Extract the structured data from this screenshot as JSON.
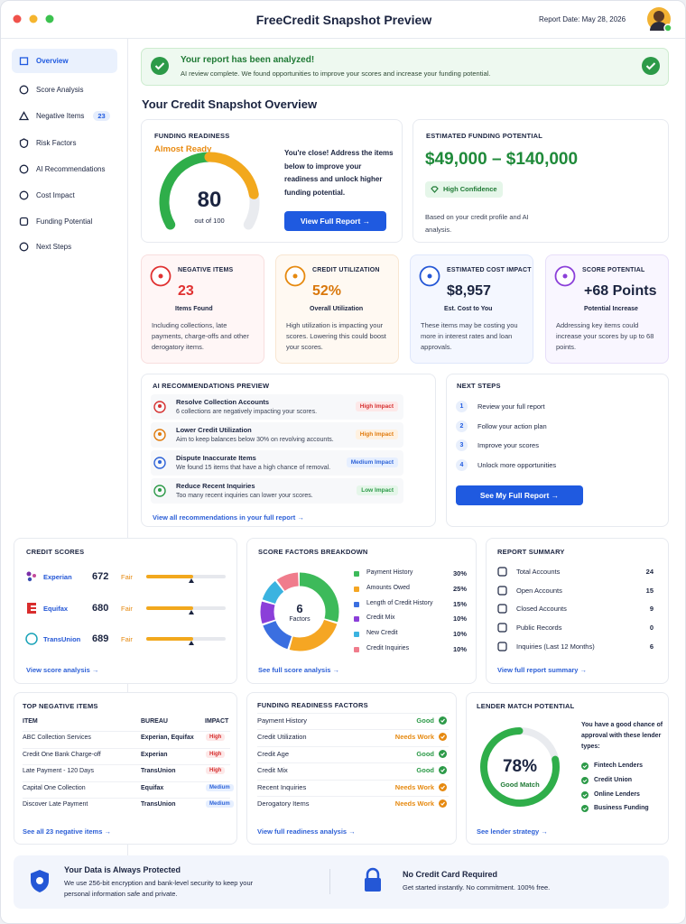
{
  "header": {
    "title": "FreeCredit Snapshot Preview",
    "report_date": "Report Date: May 28, 2026"
  },
  "sidebar": {
    "items": [
      "Overview",
      "Score Analysis",
      "Negative Items",
      "Risk Factors",
      "AI Recommendations",
      "Cost Impact",
      "Funding Potential",
      "Next Steps"
    ],
    "negative_count": "23"
  },
  "banner": {
    "title": "Your report has been analyzed!",
    "text": "AI review complete. We found opportunities to improve your scores and increase your funding potential."
  },
  "overview_title": "Your Credit Snapshot Overview",
  "funding_readiness": {
    "heading": "FUNDING READINESS",
    "status": "Almost Ready",
    "score": "80",
    "score_caption": "out of 100",
    "text": "You're close! Address the items below to improve your readiness and unlock higher funding potential.",
    "button": "View Full Report →"
  },
  "funding_potential": {
    "heading": "ESTIMATED FUNDING POTENTIAL",
    "amount": "$49,000 – $140,000",
    "badge": "High Confidence",
    "text": "Based on your credit profile and AI analysis."
  },
  "stats": [
    {
      "heading": "NEGATIVE ITEMS",
      "value": "23",
      "caption": "Items Found",
      "text": "Including collections, late payments, charge-offs and other derogatory items."
    },
    {
      "heading": "CREDIT UTILIZATION",
      "value": "52%",
      "caption": "Overall Utilization",
      "text": "High utilization is impacting your scores. Lowering this could boost your scores."
    },
    {
      "heading": "ESTIMATED COST IMPACT",
      "value": "$8,957",
      "caption": "Est. Cost to You",
      "text": "These items may be costing you more in interest rates and loan approvals."
    },
    {
      "heading": "SCORE POTENTIAL",
      "value": "+68 Points",
      "caption": "Potential Increase",
      "text": "Addressing key items could increase your scores by up to 68 points."
    }
  ],
  "recommendations": {
    "heading": "AI RECOMMENDATIONS PREVIEW",
    "items": [
      {
        "title": "Resolve Collection Accounts",
        "text": "6 collections are negatively impacting your scores.",
        "impact": "High Impact"
      },
      {
        "title": "Lower Credit Utilization",
        "text": "Aim to keep balances below 30% on revolving accounts.",
        "impact": "High Impact"
      },
      {
        "title": "Dispute Inaccurate Items",
        "text": "We found 15 items that have a high chance of removal.",
        "impact": "Medium Impact"
      },
      {
        "title": "Reduce Recent Inquiries",
        "text": "Too many recent inquiries can lower your scores.",
        "impact": "Low Impact"
      }
    ],
    "link": "View all recommendations in your full report →"
  },
  "next_steps": {
    "heading": "NEXT STEPS",
    "items": [
      {
        "number": "1",
        "text": "Review your full report"
      },
      {
        "number": "2",
        "text": "Follow your action plan"
      },
      {
        "number": "3",
        "text": "Improve your scores"
      },
      {
        "number": "4",
        "text": "Unlock more opportunities"
      }
    ],
    "button": "See My Full Report →"
  },
  "credit_scores": {
    "heading": "CREDIT SCORES",
    "bureaus": [
      {
        "name": "Experian",
        "score": "672",
        "rating": "Fair"
      },
      {
        "name": "Equifax",
        "score": "680",
        "rating": "Fair"
      },
      {
        "name": "TransUnion",
        "score": "689",
        "rating": "Fair"
      }
    ],
    "link": "View score analysis →"
  },
  "score_factors": {
    "heading": "SCORE FACTORS BREAKDOWN",
    "center_value": "6",
    "center_label": "Factors",
    "factors": [
      {
        "name": "Payment History",
        "value": 30,
        "label": "30%",
        "color": "#3dba5a"
      },
      {
        "name": "Amounts Owed",
        "value": 25,
        "label": "25%",
        "color": "#f5a623"
      },
      {
        "name": "Length of Credit History",
        "value": 15,
        "label": "15%",
        "color": "#3b6fe0"
      },
      {
        "name": "Credit Mix",
        "value": 10,
        "label": "10%",
        "color": "#8b3fd9"
      },
      {
        "name": "New Credit",
        "value": 10,
        "label": "10%",
        "color": "#3bb3e0"
      },
      {
        "name": "Credit Inquiries",
        "value": 10,
        "label": "10%",
        "color": "#f07c8c"
      }
    ],
    "link": "See full score analysis →"
  },
  "report_summary": {
    "heading": "REPORT SUMMARY",
    "rows": [
      [
        "Total Accounts",
        "24"
      ],
      [
        "Open Accounts",
        "15"
      ],
      [
        "Closed Accounts",
        "9"
      ],
      [
        "Public Records",
        "0"
      ],
      [
        "Inquiries (Last 12 Months)",
        "6"
      ]
    ],
    "link": "View full report summary →"
  },
  "negative_items": {
    "heading": "TOP NEGATIVE ITEMS",
    "columns": [
      "ITEM",
      "BUREAU",
      "IMPACT"
    ],
    "rows": [
      [
        "ABC Collection Services",
        "Experian, Equifax",
        "High"
      ],
      [
        "Credit One Bank Charge-off",
        "Experian",
        "High"
      ],
      [
        "Late Payment - 120 Days",
        "TransUnion",
        "High"
      ],
      [
        "Capital One Collection",
        "Equifax",
        "Medium"
      ],
      [
        "Discover Late Payment",
        "TransUnion",
        "Medium"
      ]
    ],
    "link": "See all 23 negative items →"
  },
  "readiness_factors": {
    "heading": "FUNDING READINESS FACTORS",
    "rows": [
      [
        "Payment History",
        "Good"
      ],
      [
        "Credit Utilization",
        "Needs Work"
      ],
      [
        "Credit Age",
        "Good"
      ],
      [
        "Credit Mix",
        "Good"
      ],
      [
        "Recent Inquiries",
        "Needs Work"
      ],
      [
        "Derogatory Items",
        "Needs Work"
      ]
    ],
    "link": "View full readiness analysis →"
  },
  "lender_match": {
    "heading": "LENDER MATCH POTENTIAL",
    "value": 78,
    "label": "78%",
    "caption": "Good Match",
    "text": "You have a good chance of approval with these lender types:",
    "lenders": [
      "Fintech Lenders",
      "Credit Union",
      "Online Lenders",
      "Business Funding"
    ],
    "link": "See lender strategy →"
  },
  "footer": {
    "protected_title": "Your Data is Always Protected",
    "protected_text": "We use 256-bit encryption and bank-level security to keep your personal information safe and private.",
    "card_title": "No Credit Card Required",
    "card_text": "Get started instantly. No commitment. 100% free."
  }
}
